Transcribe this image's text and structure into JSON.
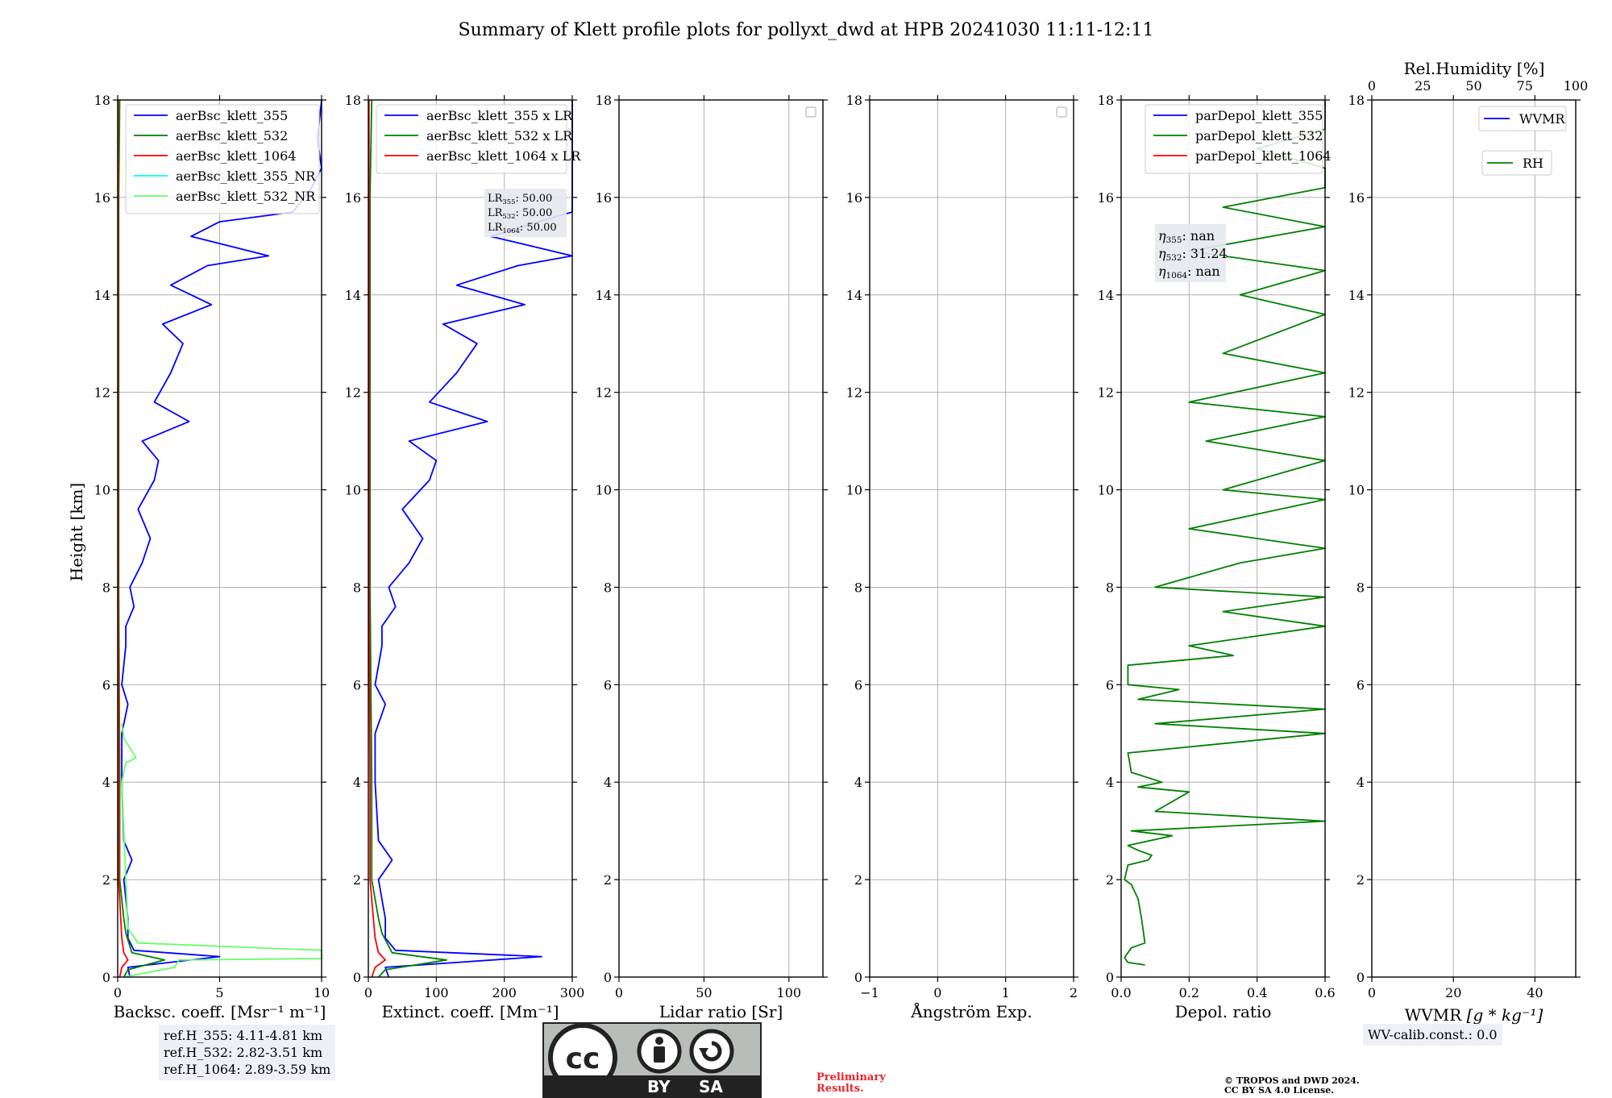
{
  "title": "Summary of Klett profile plots for pollyxt_dwd at HPB 20241030 11:11-12:11",
  "ylabel": "Height [km]",
  "icons": {
    "license": "cc-by-sa-badge"
  },
  "license_badge": {
    "by": "BY",
    "sa": "SA"
  },
  "ref_heights": [
    "ref.H_355: 4.11-4.81 km",
    "ref.H_532: 2.82-3.51 km",
    "ref.H_1064: 2.89-3.59 km"
  ],
  "wv_calib": "WV-calib.const.: 0.0",
  "preliminary": [
    "Preliminary",
    "Results."
  ],
  "copyright": [
    "© TROPOS and DWD 2024.",
    "CC BY SA 4.0 License."
  ],
  "colors": {
    "c355": "#0000ff",
    "c532": "#008000",
    "c1064": "#ff0000",
    "c355nr": "#00ffff",
    "c532nr": "#66ff66"
  },
  "chart_data": [
    {
      "type": "line",
      "xlabel": "Backsc. coeff. [Msr⁻¹ m⁻¹]",
      "xlim": [
        0,
        10
      ],
      "ylim": [
        0,
        18
      ],
      "xticks": [
        "0",
        "5",
        "10"
      ],
      "yticks": [
        "0",
        "2",
        "4",
        "6",
        "8",
        "10",
        "12",
        "14",
        "16",
        "18"
      ],
      "legend": [
        "aerBsc_klett_355",
        "aerBsc_klett_532",
        "aerBsc_klett_1064",
        "aerBsc_klett_355_NR",
        "aerBsc_klett_532_NR"
      ],
      "series": [
        {
          "name": "aerBsc_klett_355",
          "color": "#0000ff",
          "values": [
            [
              0.6,
              0
            ],
            [
              0.5,
              0.2
            ],
            [
              5,
              0.42
            ],
            [
              0.8,
              0.55
            ],
            [
              0.5,
              0.8
            ],
            [
              0.5,
              1.2
            ],
            [
              0.3,
              2
            ],
            [
              0.7,
              2.4
            ],
            [
              0.3,
              2.8
            ],
            [
              0.2,
              4
            ],
            [
              0.2,
              5
            ],
            [
              0.5,
              5.6
            ],
            [
              0.2,
              6
            ],
            [
              0.4,
              6.8
            ],
            [
              0.4,
              7.2
            ],
            [
              0.8,
              7.6
            ],
            [
              0.6,
              8
            ],
            [
              1.2,
              8.5
            ],
            [
              1.6,
              9
            ],
            [
              1.0,
              9.6
            ],
            [
              1.8,
              10.2
            ],
            [
              2,
              10.6
            ],
            [
              1.2,
              11
            ],
            [
              3.5,
              11.4
            ],
            [
              1.8,
              11.8
            ],
            [
              2.6,
              12.4
            ],
            [
              3.2,
              13
            ],
            [
              2.2,
              13.4
            ],
            [
              4.6,
              13.8
            ],
            [
              2.6,
              14.2
            ],
            [
              4.4,
              14.6
            ],
            [
              7.4,
              14.8
            ],
            [
              3.6,
              15.2
            ],
            [
              5,
              15.5
            ],
            [
              8.6,
              15.7
            ],
            [
              9.5,
              16.2
            ],
            [
              10,
              16.6
            ],
            [
              9.8,
              17.2
            ],
            [
              10,
              18
            ]
          ]
        },
        {
          "name": "aerBsc_klett_532",
          "color": "#008000",
          "values": [
            [
              0.3,
              0
            ],
            [
              0.5,
              0.15
            ],
            [
              2.3,
              0.35
            ],
            [
              0.7,
              0.5
            ],
            [
              0.4,
              0.9
            ],
            [
              0.3,
              1.2
            ],
            [
              0.1,
              2
            ],
            [
              0.1,
              4
            ],
            [
              0.05,
              8
            ],
            [
              0.05,
              12
            ],
            [
              0.05,
              16
            ],
            [
              0.1,
              18
            ]
          ]
        },
        {
          "name": "aerBsc_klett_1064",
          "color": "#ff0000",
          "values": [
            [
              0.1,
              0
            ],
            [
              0.2,
              0.2
            ],
            [
              0.5,
              0.35
            ],
            [
              0.3,
              0.5
            ],
            [
              0.2,
              0.8
            ],
            [
              0.15,
              1.2
            ],
            [
              0.05,
              2
            ],
            [
              0.05,
              4
            ],
            [
              0.02,
              8
            ],
            [
              0.02,
              12
            ],
            [
              0.02,
              16
            ],
            [
              0.02,
              18
            ]
          ]
        },
        {
          "name": "aerBsc_klett_355_NR",
          "color": "#00ffff",
          "values": []
        },
        {
          "name": "aerBsc_klett_532_NR",
          "color": "#66ff66",
          "values": [
            [
              0.3,
              0
            ],
            [
              2.8,
              0.2
            ],
            [
              3,
              0.35
            ],
            [
              10,
              0.38
            ],
            [
              10,
              0.5
            ],
            [
              10,
              0.55
            ],
            [
              1,
              0.7
            ],
            [
              0.5,
              1
            ],
            [
              0.4,
              2
            ],
            [
              0.3,
              3
            ],
            [
              0.2,
              4
            ],
            [
              0.4,
              4.4
            ],
            [
              0.9,
              4.5
            ],
            [
              0.6,
              4.7
            ],
            [
              0.3,
              4.9
            ],
            [
              0.2,
              5.2
            ]
          ]
        }
      ]
    },
    {
      "type": "line",
      "xlabel": "Extinct. coeff. [Mm⁻¹]",
      "xlim": [
        0,
        300
      ],
      "ylim": [
        0,
        18
      ],
      "xticks": [
        "0",
        "100",
        "200",
        "300"
      ],
      "yticks": [
        "0",
        "2",
        "4",
        "6",
        "8",
        "10",
        "12",
        "14",
        "16",
        "18"
      ],
      "legend": [
        "aerBsc_klett_355 x LR",
        "aerBsc_klett_532 x LR",
        "aerBsc_klett_1064 x LR"
      ],
      "annotation": [
        {
          "sub": "355",
          "value": ": 50.00"
        },
        {
          "sub": "532",
          "value": ": 50.00"
        },
        {
          "sub": "1064",
          "value": ": 50.00"
        }
      ],
      "series": [
        {
          "name": "aerBsc_klett_355 x LR",
          "color": "#0000ff",
          "values": [
            [
              30,
              0
            ],
            [
              25,
              0.2
            ],
            [
              255,
              0.42
            ],
            [
              40,
              0.55
            ],
            [
              25,
              0.8
            ],
            [
              25,
              1.2
            ],
            [
              15,
              2
            ],
            [
              35,
              2.4
            ],
            [
              15,
              2.8
            ],
            [
              10,
              4
            ],
            [
              10,
              5
            ],
            [
              25,
              5.6
            ],
            [
              10,
              6
            ],
            [
              20,
              6.8
            ],
            [
              20,
              7.2
            ],
            [
              40,
              7.6
            ],
            [
              30,
              8
            ],
            [
              60,
              8.5
            ],
            [
              80,
              9
            ],
            [
              50,
              9.6
            ],
            [
              90,
              10.2
            ],
            [
              100,
              10.6
            ],
            [
              60,
              11
            ],
            [
              175,
              11.4
            ],
            [
              90,
              11.8
            ],
            [
              130,
              12.4
            ],
            [
              160,
              13
            ],
            [
              110,
              13.4
            ],
            [
              230,
              13.8
            ],
            [
              130,
              14.2
            ],
            [
              220,
              14.6
            ],
            [
              300,
              14.8
            ],
            [
              180,
              15.2
            ],
            [
              250,
              15.5
            ],
            [
              300,
              15.7
            ],
            [
              300,
              16.2
            ],
            [
              300,
              16.6
            ],
            [
              300,
              17.2
            ],
            [
              300,
              18
            ]
          ]
        },
        {
          "name": "aerBsc_klett_532 x LR",
          "color": "#008000",
          "values": [
            [
              15,
              0
            ],
            [
              25,
              0.15
            ],
            [
              115,
              0.35
            ],
            [
              35,
              0.5
            ],
            [
              20,
              0.9
            ],
            [
              15,
              1.2
            ],
            [
              5,
              2
            ],
            [
              5,
              4
            ],
            [
              2.5,
              8
            ],
            [
              2.5,
              12
            ],
            [
              2.5,
              16
            ],
            [
              5,
              18
            ]
          ]
        },
        {
          "name": "aerBsc_klett_1064 x LR",
          "color": "#ff0000",
          "values": [
            [
              5,
              0
            ],
            [
              10,
              0.2
            ],
            [
              25,
              0.35
            ],
            [
              15,
              0.5
            ],
            [
              10,
              0.8
            ],
            [
              7.5,
              1.2
            ],
            [
              2.5,
              2
            ],
            [
              2.5,
              4
            ],
            [
              1,
              8
            ],
            [
              1,
              12
            ],
            [
              1,
              16
            ],
            [
              1,
              18
            ]
          ]
        }
      ]
    },
    {
      "type": "line",
      "xlabel": "Lidar ratio [Sr]",
      "xlim": [
        0,
        120
      ],
      "ylim": [
        0,
        18
      ],
      "xticks": [
        "0",
        "50",
        "100"
      ],
      "yticks": [
        "0",
        "2",
        "4",
        "6",
        "8",
        "10",
        "12",
        "14",
        "16",
        "18"
      ],
      "series": []
    },
    {
      "type": "line",
      "xlabel": "Ångström Exp.",
      "xlim": [
        -1,
        2
      ],
      "ylim": [
        0,
        18
      ],
      "xticks": [
        "−1",
        "0",
        "1",
        "2"
      ],
      "yticks": [
        "0",
        "2",
        "4",
        "6",
        "8",
        "10",
        "12",
        "14",
        "16",
        "18"
      ],
      "series": []
    },
    {
      "type": "line",
      "xlabel": "Depol. ratio",
      "xlim": [
        0,
        0.6
      ],
      "ylim": [
        0,
        18
      ],
      "xticks": [
        "0.0",
        "0.2",
        "0.4",
        "0.6"
      ],
      "yticks": [
        "0",
        "2",
        "4",
        "6",
        "8",
        "10",
        "12",
        "14",
        "16",
        "18"
      ],
      "legend": [
        "parDepol_klett_355",
        "parDepol_klett_532",
        "parDepol_klett_1064"
      ],
      "annotation": [
        {
          "sub": "355",
          "value": ": nan"
        },
        {
          "sub": "532",
          "value": ": 31.24"
        },
        {
          "sub": "1064",
          "value": ": nan"
        }
      ],
      "series": [
        {
          "name": "parDepol_klett_355",
          "color": "#0000ff",
          "values": []
        },
        {
          "name": "parDepol_klett_532",
          "color": "#008000",
          "values": [
            [
              0.07,
              0.25
            ],
            [
              0.02,
              0.3
            ],
            [
              0.01,
              0.4
            ],
            [
              0.03,
              0.6
            ],
            [
              0.07,
              0.7
            ],
            [
              0.06,
              1.2
            ],
            [
              0.05,
              1.6
            ],
            [
              0.03,
              1.9
            ],
            [
              0.01,
              2
            ],
            [
              0.02,
              2.3
            ],
            [
              0.08,
              2.4
            ],
            [
              0.09,
              2.5
            ],
            [
              0.05,
              2.6
            ],
            [
              0.02,
              2.7
            ],
            [
              0.15,
              2.9
            ],
            [
              0.03,
              3
            ],
            [
              0.6,
              3.2
            ],
            [
              0.1,
              3.4
            ],
            [
              0.2,
              3.8
            ],
            [
              0.05,
              3.9
            ],
            [
              0.12,
              4
            ],
            [
              0.03,
              4.2
            ],
            [
              0.02,
              4.6
            ],
            [
              0.6,
              5.0
            ],
            [
              0.1,
              5.2
            ],
            [
              0.6,
              5.5
            ],
            [
              0.05,
              5.7
            ],
            [
              0.17,
              5.9
            ],
            [
              0.02,
              6.0
            ],
            [
              0.02,
              6.4
            ],
            [
              0.33,
              6.6
            ],
            [
              0.2,
              6.8
            ],
            [
              0.6,
              7.2
            ],
            [
              0.3,
              7.5
            ],
            [
              0.6,
              7.8
            ],
            [
              0.1,
              8.0
            ],
            [
              0.35,
              8.5
            ],
            [
              0.6,
              8.8
            ],
            [
              0.2,
              9.2
            ],
            [
              0.6,
              9.8
            ],
            [
              0.3,
              10
            ],
            [
              0.6,
              10.6
            ],
            [
              0.25,
              11
            ],
            [
              0.6,
              11.5
            ],
            [
              0.2,
              11.8
            ],
            [
              0.6,
              12.4
            ],
            [
              0.3,
              12.8
            ],
            [
              0.6,
              13.6
            ],
            [
              0.35,
              14
            ],
            [
              0.6,
              14.5
            ],
            [
              0.2,
              14.9
            ],
            [
              0.6,
              15.4
            ],
            [
              0.3,
              15.8
            ],
            [
              0.6,
              16.2
            ],
            [
              0.6,
              16.6
            ],
            [
              0.4,
              17.0
            ],
            [
              0.6,
              17.4
            ],
            [
              0.6,
              18
            ]
          ]
        },
        {
          "name": "parDepol_klett_1064",
          "color": "#ff0000",
          "values": []
        }
      ]
    },
    {
      "type": "line",
      "xlabel": "WVMR",
      "xlabel_unit": "[g * kg⁻¹]",
      "xlim": [
        0,
        50
      ],
      "ylim": [
        0,
        18
      ],
      "xticks": [
        "0",
        "20",
        "40"
      ],
      "yticks": [
        "0",
        "2",
        "4",
        "6",
        "8",
        "10",
        "12",
        "14",
        "16",
        "18"
      ],
      "top_axis_label": "Rel.Humidity [%]",
      "top_xlim": [
        0,
        100
      ],
      "top_xticks": [
        "0",
        "25",
        "50",
        "75",
        "100"
      ],
      "legend": [
        "WVMR",
        "RH"
      ],
      "series": [
        {
          "name": "WVMR",
          "color": "#0000ff",
          "values": []
        },
        {
          "name": "RH",
          "color": "#008000",
          "values": []
        }
      ]
    }
  ]
}
